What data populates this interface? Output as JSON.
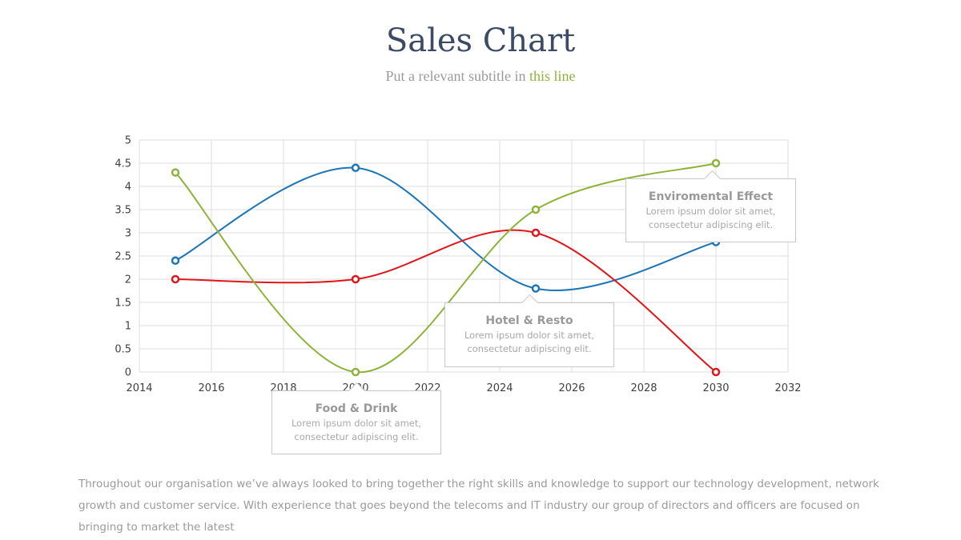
{
  "header": {
    "title": "Sales Chart",
    "subtitle_main": "Put a relevant subtitle in ",
    "subtitle_accent": "this line"
  },
  "chart_data": {
    "type": "line",
    "title": "",
    "xlabel": "",
    "ylabel": "",
    "xlim": [
      2014,
      2032
    ],
    "ylim": [
      0,
      5
    ],
    "x_ticks": [
      2014,
      2016,
      2018,
      2020,
      2022,
      2024,
      2026,
      2028,
      2030,
      2032
    ],
    "y_ticks": [
      0,
      0.5,
      1,
      1.5,
      2,
      2.5,
      3,
      3.5,
      4,
      4.5,
      5
    ],
    "grid": true,
    "smooth": true,
    "x": [
      2015,
      2020,
      2025,
      2030
    ],
    "series": [
      {
        "color": "#1c75b5",
        "values": [
          2.4,
          4.4,
          1.8,
          2.8
        ]
      },
      {
        "color": "#e0161b",
        "values": [
          2.0,
          2.0,
          3.0,
          0.0
        ]
      },
      {
        "color": "#8db33a",
        "values": [
          4.3,
          0.0,
          3.5,
          4.5
        ]
      }
    ]
  },
  "callouts": [
    {
      "title": "Food & Drink",
      "body_line1": "Lorem ipsum dolor sit amet,",
      "body_line2": "consectetur adipiscing elit."
    },
    {
      "title": "Hotel & Resto",
      "body_line1": "Lorem ipsum dolor sit amet,",
      "body_line2": "consectetur adipiscing elit."
    },
    {
      "title": "Enviromental Effect",
      "body_line1": "Lorem ipsum dolor sit amet,",
      "body_line2": "consectetur adipiscing elit."
    }
  ],
  "paragraph": "Throughout our organisation we’ve always looked to bring together the right skills and knowledge to support our technology development, network growth and customer service. With experience that goes beyond the telecoms and IT industry our group of directors and officers are focused on bringing to market the latest"
}
